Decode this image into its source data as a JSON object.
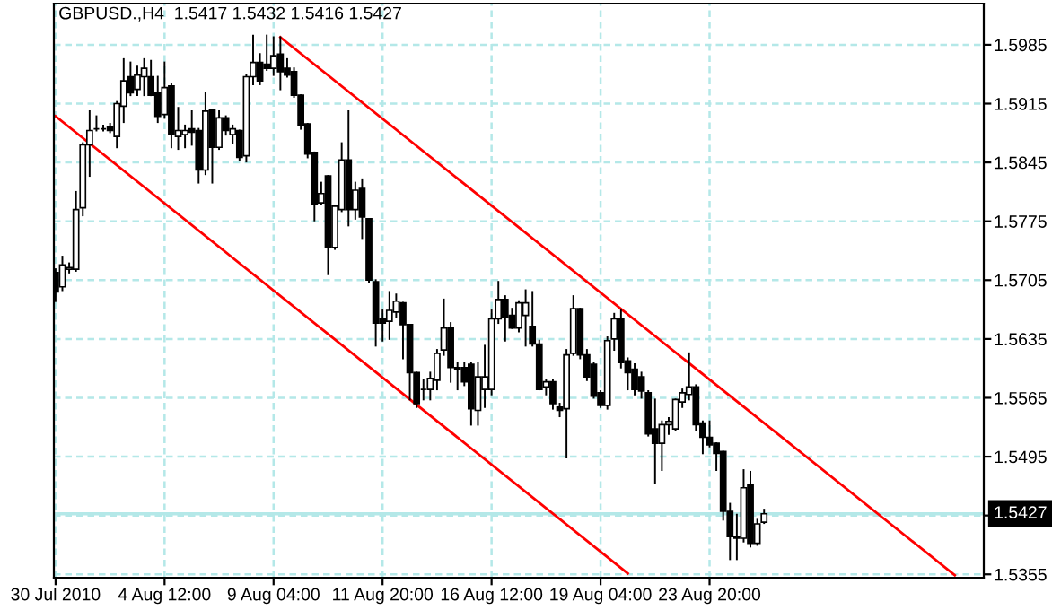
{
  "chart_data": {
    "type": "candlestick",
    "title": "GBPUSD.,H4  1.5417 1.5432 1.5416 1.5427",
    "categories": [
      "30 Jul 2010",
      null,
      null,
      null,
      null,
      null,
      null,
      null,
      null,
      null,
      null,
      null,
      null,
      null,
      null,
      null,
      "4 Aug 12:00",
      null,
      null,
      null,
      null,
      null,
      null,
      null,
      null,
      null,
      null,
      null,
      null,
      null,
      null,
      null,
      "9 Aug 04:00",
      null,
      null,
      null,
      null,
      null,
      null,
      null,
      null,
      null,
      null,
      null,
      null,
      null,
      null,
      null,
      "11 Aug 20:00",
      null,
      null,
      null,
      null,
      null,
      null,
      null,
      null,
      null,
      null,
      null,
      null,
      null,
      null,
      null,
      "16 Aug 12:00",
      null,
      null,
      null,
      null,
      null,
      null,
      null,
      null,
      null,
      null,
      null,
      null,
      null,
      null,
      null,
      "19 Aug 04:00",
      null,
      null,
      null,
      null,
      null,
      null,
      null,
      null,
      null,
      null,
      null,
      null,
      null,
      null,
      null,
      "23 Aug 20:00",
      null,
      null,
      null,
      null,
      null,
      null,
      null,
      null,
      null,
      null,
      null,
      null,
      null,
      null,
      null,
      null,
      null,
      null,
      null,
      null,
      null,
      null,
      null,
      null,
      null,
      null,
      null,
      null,
      null,
      null,
      null,
      null,
      null,
      null,
      null,
      null,
      null,
      null,
      null,
      null
    ],
    "ohlc": [
      [
        1.5714,
        1.5718,
        1.568,
        1.5691
      ],
      [
        1.5697,
        1.5733,
        1.5693,
        1.5723
      ],
      [
        1.5718,
        1.5725,
        1.5714,
        1.572
      ],
      [
        1.5718,
        1.581,
        1.5716,
        1.5789
      ],
      [
        1.5791,
        1.5868,
        1.5782,
        1.5866
      ],
      [
        1.5866,
        1.5906,
        1.5829,
        1.5883
      ],
      [
        1.5885,
        1.59,
        1.5883,
        1.5885
      ],
      [
        1.5885,
        1.5889,
        1.5883,
        1.5885
      ],
      [
        1.5887,
        1.5891,
        1.5881,
        1.5883
      ],
      [
        1.5876,
        1.5917,
        1.5863,
        1.5915
      ],
      [
        1.5912,
        1.5968,
        1.5893,
        1.5942
      ],
      [
        1.5947,
        1.5964,
        1.5925,
        1.5928
      ],
      [
        1.5932,
        1.5959,
        1.5925,
        1.5949
      ],
      [
        1.5947,
        1.5968,
        1.5925,
        1.5957
      ],
      [
        1.5947,
        1.5966,
        1.5925,
        1.5925
      ],
      [
        1.5928,
        1.5947,
        1.5893,
        1.59
      ],
      [
        1.5902,
        1.5964,
        1.5898,
        1.5934
      ],
      [
        1.5936,
        1.5938,
        1.5863,
        1.5878
      ],
      [
        1.5876,
        1.591,
        1.5861,
        1.5883
      ],
      [
        1.5878,
        1.5889,
        1.5863,
        1.5883
      ],
      [
        1.5885,
        1.5906,
        1.5866,
        1.5881
      ],
      [
        1.5883,
        1.5885,
        1.5821,
        1.5836
      ],
      [
        1.5836,
        1.5928,
        1.5831,
        1.5906
      ],
      [
        1.5908,
        1.5908,
        1.5821,
        1.5863
      ],
      [
        1.5863,
        1.5906,
        1.5861,
        1.5898
      ],
      [
        1.5898,
        1.59,
        1.5878,
        1.5883
      ],
      [
        1.5878,
        1.5889,
        1.5868,
        1.5885
      ],
      [
        1.5883,
        1.5883,
        1.5848,
        1.5851
      ],
      [
        1.5853,
        1.5949,
        1.5846,
        1.5947
      ],
      [
        1.5947,
        1.5996,
        1.5938,
        1.5964
      ],
      [
        1.5964,
        1.5974,
        1.5938,
        1.5942
      ],
      [
        1.5962,
        1.5996,
        1.5955,
        1.5957
      ],
      [
        1.5957,
        1.5994,
        1.5949,
        1.5972
      ],
      [
        1.5974,
        1.5994,
        1.5932,
        1.5953
      ],
      [
        1.5957,
        1.5968,
        1.5947,
        1.5949
      ],
      [
        1.5953,
        1.5957,
        1.5923,
        1.5925
      ],
      [
        1.5925,
        1.5925,
        1.5885,
        1.5889
      ],
      [
        1.5891,
        1.5891,
        1.5851,
        1.5855
      ],
      [
        1.5857,
        1.5857,
        1.5776,
        1.5795
      ],
      [
        1.5797,
        1.5821,
        1.5795,
        1.5808
      ],
      [
        1.5829,
        1.5829,
        1.5712,
        1.5744
      ],
      [
        1.5744,
        1.5793,
        1.5742,
        1.5793
      ],
      [
        1.5789,
        1.5868,
        1.5787,
        1.5848
      ],
      [
        1.5848,
        1.5906,
        1.577,
        1.5789
      ],
      [
        1.5789,
        1.5821,
        1.5778,
        1.5812
      ],
      [
        1.5814,
        1.5825,
        1.5755,
        1.578
      ],
      [
        1.5778,
        1.5778,
        1.5703,
        1.5705
      ],
      [
        1.5703,
        1.5705,
        1.5627,
        1.5654
      ],
      [
        1.5659,
        1.5669,
        1.5633,
        1.5654
      ],
      [
        1.5656,
        1.5691,
        1.5635,
        1.5669
      ],
      [
        1.5667,
        1.5688,
        1.5661,
        1.568
      ],
      [
        1.5678,
        1.5678,
        1.5612,
        1.5652
      ],
      [
        1.5652,
        1.5652,
        1.5563,
        1.5595
      ],
      [
        1.5595,
        1.5595,
        1.5554,
        1.5558
      ],
      [
        1.5575,
        1.5586,
        1.5563,
        1.5575
      ],
      [
        1.5575,
        1.5595,
        1.5563,
        1.5588
      ],
      [
        1.5586,
        1.5622,
        1.5575,
        1.5618
      ],
      [
        1.5622,
        1.5682,
        1.5616,
        1.5648
      ],
      [
        1.5648,
        1.5654,
        1.5584,
        1.5601
      ],
      [
        1.5601,
        1.5607,
        1.5575,
        1.5599
      ],
      [
        1.5601,
        1.5607,
        1.558,
        1.5584
      ],
      [
        1.5605,
        1.5607,
        1.5533,
        1.5552
      ],
      [
        1.555,
        1.5607,
        1.5533,
        1.559
      ],
      [
        1.5575,
        1.5627,
        1.5554,
        1.559
      ],
      [
        1.5575,
        1.5669,
        1.5569,
        1.5659
      ],
      [
        1.5659,
        1.5703,
        1.5654,
        1.5682
      ],
      [
        1.5682,
        1.5686,
        1.5633,
        1.5661
      ],
      [
        1.5663,
        1.5671,
        1.5648,
        1.5648
      ],
      [
        1.5648,
        1.568,
        1.5644,
        1.5678
      ],
      [
        1.5663,
        1.5693,
        1.5627,
        1.5678
      ],
      [
        1.565,
        1.5691,
        1.5627,
        1.5629
      ],
      [
        1.5629,
        1.5633,
        1.5575,
        1.5575
      ],
      [
        1.5578,
        1.5586,
        1.5569,
        1.5584
      ],
      [
        1.5584,
        1.5586,
        1.5552,
        1.5558
      ],
      [
        1.5554,
        1.5558,
        1.5543,
        1.555
      ],
      [
        1.5552,
        1.5622,
        1.5494,
        1.5616
      ],
      [
        1.5618,
        1.5686,
        1.5616,
        1.5671
      ],
      [
        1.5671,
        1.5671,
        1.5612,
        1.5616
      ],
      [
        1.5616,
        1.5622,
        1.5586,
        1.559
      ],
      [
        1.5605,
        1.5607,
        1.5565,
        1.5567
      ],
      [
        1.5571,
        1.5573,
        1.5554,
        1.5556
      ],
      [
        1.5556,
        1.5637,
        1.5552,
        1.5633
      ],
      [
        1.5635,
        1.5665,
        1.5622,
        1.5659
      ],
      [
        1.5659,
        1.5669,
        1.5601,
        1.5607
      ],
      [
        1.5609,
        1.5612,
        1.5575,
        1.5595
      ],
      [
        1.5599,
        1.5605,
        1.5569,
        1.5575
      ],
      [
        1.559,
        1.5595,
        1.5565,
        1.5573
      ],
      [
        1.5571,
        1.5573,
        1.552,
        1.5522
      ],
      [
        1.5528,
        1.5563,
        1.5464,
        1.5511
      ],
      [
        1.5511,
        1.5537,
        1.5479,
        1.5533
      ],
      [
        1.5533,
        1.5541,
        1.5522,
        1.5537
      ],
      [
        1.5528,
        1.5563,
        1.5526,
        1.5563
      ],
      [
        1.556,
        1.5575,
        1.5554,
        1.5571
      ],
      [
        1.5569,
        1.5618,
        1.5563,
        1.5578
      ],
      [
        1.5578,
        1.558,
        1.5526,
        1.5533
      ],
      [
        1.5535,
        1.5537,
        1.5499,
        1.5518
      ],
      [
        1.5518,
        1.5537,
        1.5507,
        1.5509
      ],
      [
        1.5511,
        1.5511,
        1.5479,
        1.5499
      ],
      [
        1.5501,
        1.5501,
        1.542,
        1.543
      ],
      [
        1.543,
        1.5439,
        1.5373,
        1.54
      ],
      [
        1.54,
        1.5426,
        1.5373,
        1.5398
      ],
      [
        1.5398,
        1.5479,
        1.5394,
        1.5458
      ],
      [
        1.5462,
        1.5477,
        1.5388,
        1.5392
      ],
      [
        1.5392,
        1.542,
        1.539,
        1.5415
      ],
      [
        1.5417,
        1.5432,
        1.5416,
        1.5427
      ],
      null,
      null,
      null,
      null,
      null,
      null,
      null,
      null,
      null,
      null,
      null,
      null,
      null,
      null,
      null,
      null,
      null,
      null,
      null,
      null,
      null,
      null,
      null,
      null,
      null,
      null,
      null,
      null,
      null,
      null,
      null,
      null
    ],
    "series": [
      {
        "type": "line",
        "color": "#ff0000",
        "values": [
          null,
          null,
          null,
          null,
          null,
          null,
          null,
          null,
          null,
          null,
          null,
          null,
          null,
          null,
          null,
          null,
          null,
          null,
          null,
          null,
          null,
          null,
          null,
          null,
          null,
          null,
          null,
          null,
          null,
          null,
          null,
          null,
          null,
          1.5994,
          null,
          null,
          null,
          null,
          null,
          null,
          null,
          null,
          null,
          null,
          null,
          null,
          null,
          null,
          null,
          null,
          null,
          null,
          null,
          null,
          null,
          null,
          null,
          null,
          null,
          null,
          null,
          null,
          null,
          null,
          null,
          null,
          null,
          null,
          null,
          null,
          null,
          null,
          null,
          null,
          null,
          null,
          null,
          null,
          null,
          null,
          null,
          null,
          null,
          null,
          null,
          null,
          null,
          null,
          null,
          null,
          null,
          null,
          null,
          null,
          null,
          null,
          null,
          null,
          null,
          null,
          null,
          null,
          null,
          null,
          null,
          null,
          null,
          null,
          null,
          null,
          null,
          null,
          null,
          null,
          null,
          null,
          null,
          null,
          null,
          null,
          null,
          null,
          null,
          null,
          null,
          null,
          null,
          null,
          null,
          null,
          null,
          null,
          1.5354,
          null,
          null,
          null,
          null
        ]
      },
      {
        "type": "line",
        "color": "#ff0000",
        "values": [
          1.59,
          null,
          null,
          null,
          null,
          null,
          null,
          null,
          null,
          null,
          null,
          null,
          null,
          null,
          null,
          null,
          null,
          null,
          null,
          null,
          null,
          null,
          null,
          null,
          null,
          null,
          null,
          null,
          null,
          null,
          null,
          null,
          null,
          null,
          null,
          null,
          null,
          null,
          null,
          null,
          null,
          null,
          null,
          null,
          null,
          null,
          null,
          null,
          null,
          null,
          null,
          null,
          null,
          null,
          null,
          null,
          null,
          null,
          null,
          null,
          null,
          null,
          null,
          null,
          null,
          null,
          null,
          null,
          null,
          null,
          null,
          null,
          null,
          null,
          null,
          null,
          null,
          null,
          null,
          null,
          null,
          null,
          null,
          null,
          1.5356,
          null,
          null,
          null,
          null,
          null,
          null,
          null,
          null,
          null,
          null,
          null,
          null,
          null,
          null,
          null,
          null,
          null,
          null,
          null,
          null,
          null,
          null,
          null,
          null,
          null,
          null,
          null,
          null,
          null,
          null,
          null,
          null,
          null,
          null,
          null,
          null,
          null,
          null,
          null,
          null,
          null,
          null,
          null,
          null,
          null,
          null,
          null,
          null,
          null,
          null,
          null,
          null
        ]
      }
    ],
    "ylim": [
      1.5351,
      1.6034
    ],
    "yticks": [
      1.5985,
      1.5915,
      1.5845,
      1.5775,
      1.5705,
      1.5635,
      1.5565,
      1.5495,
      {
        "value": 1.5425,
        "label": null
      },
      1.5355
    ],
    "grid": true,
    "ref_lines": [
      {
        "axis": "y",
        "value": 1.5427,
        "label": "1.5427",
        "color": "#b4e8e8"
      }
    ]
  }
}
